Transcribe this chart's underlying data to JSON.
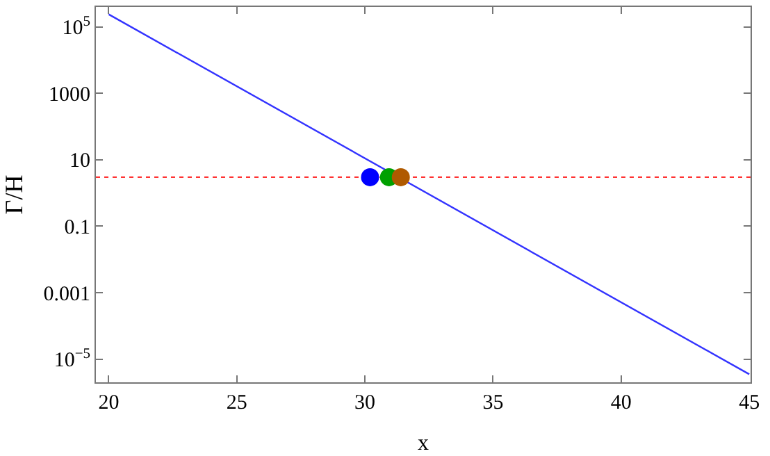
{
  "chart_data": {
    "type": "line",
    "xlabel": "x",
    "ylabel": "Γ/H",
    "log": "y",
    "grid": false,
    "xlim": [
      19.5,
      45.05
    ],
    "xticks": [
      20,
      25,
      30,
      35,
      40,
      45
    ],
    "ylim": [
      2e-06,
      400000.0
    ],
    "yticks": [
      {
        "value": 1e-05,
        "label": "10$^{−5}$"
      },
      0.001,
      0.1,
      10,
      1000,
      {
        "value": 100000,
        "label": "10$^{5}$"
      }
    ],
    "series": [
      {
        "color": "#3333ff",
        "x": [
          20,
          45
        ],
        "values": [
          240000,
          3.5e-06
        ],
        "marker": "none",
        "line_style": "solid"
      },
      {
        "type": "scatter",
        "colors": [
          "#0000ff",
          "#00a000",
          "#b05a00"
        ],
        "x": [
          30.2,
          30.94,
          31.4
        ],
        "values": [
          3,
          3,
          3
        ],
        "marker": "circle"
      }
    ],
    "ref_lines": [
      {
        "axis": "y",
        "value": 3,
        "color": "#ff3333",
        "line_style": "dotted"
      }
    ]
  }
}
